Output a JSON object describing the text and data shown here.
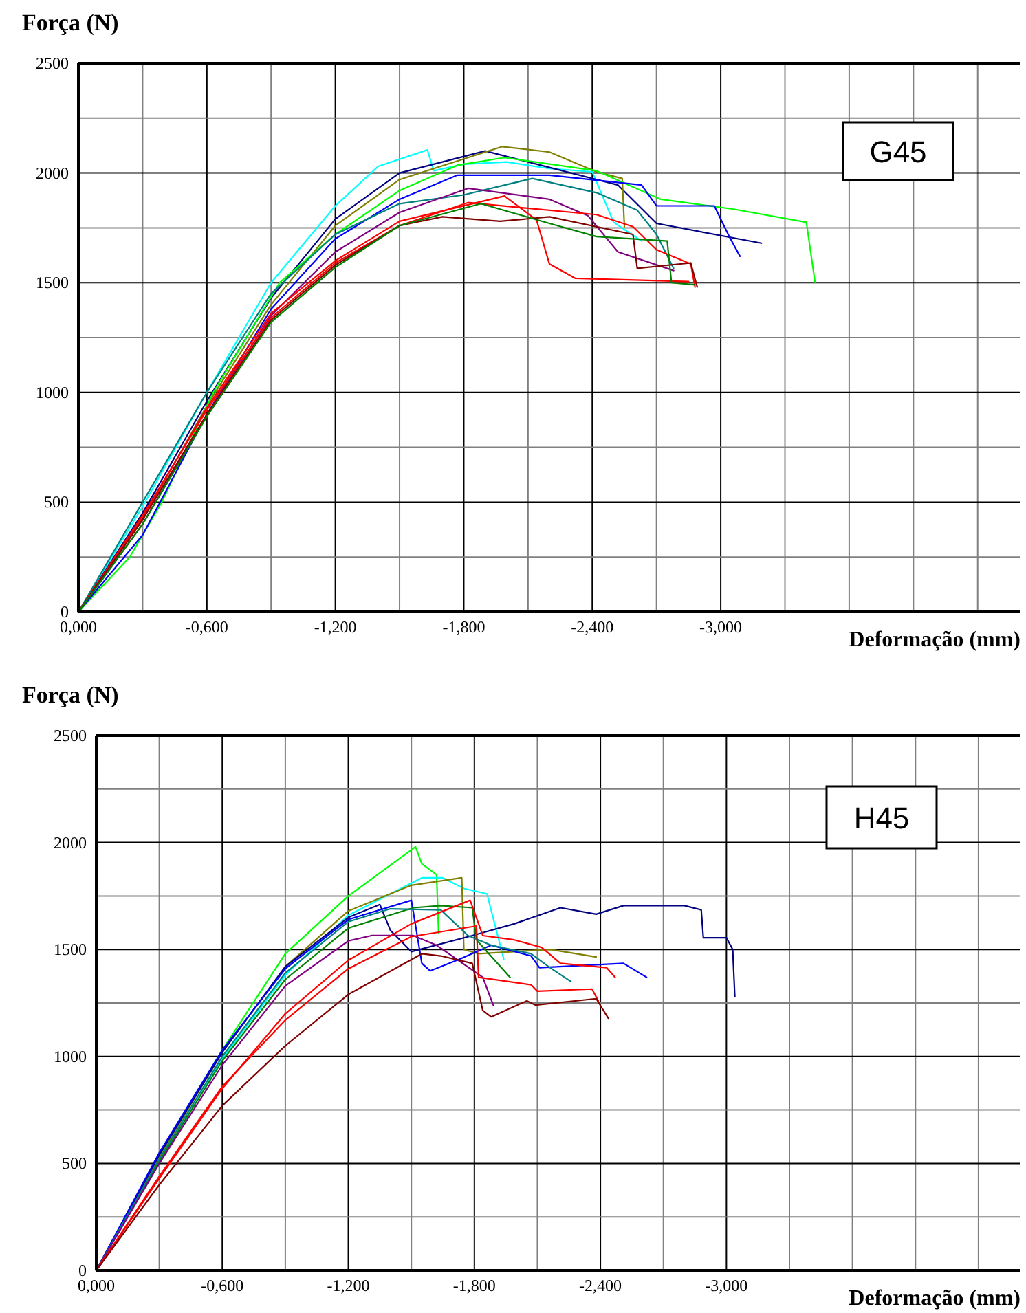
{
  "chart_data": [
    {
      "type": "line",
      "ylabel": "Força (N)",
      "xlabel": "Deformação (mm)",
      "annotations": [
        "G45"
      ],
      "grid": true,
      "xlim": [
        0,
        -4.4
      ],
      "ylim": [
        0,
        2500
      ],
      "xticks": [
        {
          "value": 0,
          "label": "0,000"
        },
        {
          "value": -0.3,
          "label": null
        },
        {
          "value": -0.6,
          "label": "-0,600"
        },
        {
          "value": -0.9,
          "label": null
        },
        {
          "value": -1.2,
          "label": "-1,200"
        },
        {
          "value": -1.5,
          "label": null
        },
        {
          "value": -1.8,
          "label": "-1,800"
        },
        {
          "value": -2.1,
          "label": null
        },
        {
          "value": -2.4,
          "label": "-2,400"
        },
        {
          "value": -2.7,
          "label": null
        },
        {
          "value": -3.0,
          "label": "-3,000"
        },
        {
          "value": -3.3,
          "label": null
        },
        {
          "value": -3.6,
          "label": null
        },
        {
          "value": -3.9,
          "label": null
        },
        {
          "value": -4.2,
          "label": null
        }
      ],
      "yticks": [
        0,
        {
          "value": 250,
          "label": null
        },
        500,
        {
          "value": 750,
          "label": null
        },
        1000,
        {
          "value": 1250,
          "label": null
        },
        1500,
        {
          "value": 1750,
          "label": null
        },
        2000,
        {
          "value": 2250,
          "label": null
        },
        2500
      ],
      "series": [
        {
          "color": "#00ffff",
          "x": [
            0,
            -0.3,
            -0.6,
            -0.9,
            -1.2,
            -1.4,
            -1.63,
            -1.66,
            -1.8,
            -2.0,
            -2.2,
            -2.4,
            -2.5,
            -2.63
          ],
          "values": [
            0,
            480,
            1000,
            1500,
            1850,
            2030,
            2105,
            2010,
            2040,
            2050,
            2020,
            2005,
            1775,
            1690
          ]
        },
        {
          "color": "#000080",
          "x": [
            0,
            -0.3,
            -0.6,
            -0.9,
            -1.2,
            -1.5,
            -1.9,
            -2.2,
            -2.52,
            -2.7,
            -3.19
          ],
          "values": [
            0,
            450,
            960,
            1430,
            1790,
            2000,
            2100,
            2025,
            1945,
            1770,
            1680
          ]
        },
        {
          "color": "#808000",
          "x": [
            0,
            -0.3,
            -0.6,
            -0.9,
            -1.2,
            -1.5,
            -1.98,
            -2.2,
            -2.42,
            -2.54,
            -2.55
          ],
          "values": [
            0,
            420,
            940,
            1400,
            1760,
            1970,
            2120,
            2095,
            2005,
            1975,
            1755
          ]
        },
        {
          "color": "#00ff00",
          "x": [
            0,
            -0.24,
            -0.39,
            -0.63,
            -0.94,
            -1.2,
            -1.5,
            -1.77,
            -1.99,
            -2.42,
            -2.72,
            -3.06,
            -3.4,
            -3.44
          ],
          "values": [
            0,
            250,
            500,
            1000,
            1500,
            1720,
            1920,
            2035,
            2070,
            2010,
            1880,
            1835,
            1775,
            1505
          ]
        },
        {
          "color": "#0000ff",
          "x": [
            0,
            -0.3,
            -0.6,
            -0.9,
            -1.2,
            -1.5,
            -1.77,
            -2.2,
            -2.63,
            -2.7,
            -2.97,
            -3.04,
            -3.09
          ],
          "values": [
            0,
            350,
            900,
            1380,
            1700,
            1880,
            1990,
            1990,
            1945,
            1850,
            1850,
            1710,
            1620
          ]
        },
        {
          "color": "#008080",
          "x": [
            0,
            -0.3,
            -0.6,
            -0.9,
            -1.2,
            -1.5,
            -1.8,
            -2.12,
            -2.42,
            -2.61,
            -2.7,
            -2.78
          ],
          "values": [
            0,
            500,
            1000,
            1450,
            1720,
            1860,
            1900,
            1975,
            1910,
            1830,
            1720,
            1565
          ]
        },
        {
          "color": "#800080",
          "x": [
            0,
            -0.3,
            -0.6,
            -0.9,
            -1.2,
            -1.5,
            -1.82,
            -2.2,
            -2.38,
            -2.52,
            -2.78
          ],
          "values": [
            0,
            400,
            900,
            1350,
            1640,
            1820,
            1930,
            1880,
            1805,
            1640,
            1555
          ]
        },
        {
          "color": "#ff0000",
          "x": [
            0,
            -0.3,
            -0.6,
            -0.9,
            -1.2,
            -1.5,
            -1.99,
            -2.14,
            -2.2,
            -2.32,
            -2.85
          ],
          "values": [
            0,
            430,
            930,
            1360,
            1600,
            1780,
            1895,
            1785,
            1585,
            1520,
            1505
          ]
        },
        {
          "color": "#ff0000",
          "x": [
            0,
            -0.3,
            -0.6,
            -0.9,
            -1.2,
            -1.5,
            -1.82,
            -2.42,
            -2.59,
            -2.7,
            -2.86,
            -2.88
          ],
          "values": [
            0,
            440,
            920,
            1340,
            1590,
            1760,
            1865,
            1810,
            1755,
            1650,
            1585,
            1480
          ]
        },
        {
          "color": "#800000",
          "x": [
            0,
            -0.3,
            -0.6,
            -0.9,
            -1.2,
            -1.5,
            -1.7,
            -1.97,
            -2.2,
            -2.59,
            -2.61,
            -2.86,
            -2.89
          ],
          "values": [
            0,
            420,
            900,
            1330,
            1580,
            1760,
            1800,
            1780,
            1800,
            1720,
            1565,
            1590,
            1480
          ]
        },
        {
          "color": "#008000",
          "x": [
            0,
            -0.3,
            -0.6,
            -0.9,
            -1.2,
            -1.5,
            -1.88,
            -2.2,
            -2.42,
            -2.75,
            -2.77,
            -2.88
          ],
          "values": [
            0,
            400,
            890,
            1320,
            1570,
            1760,
            1860,
            1770,
            1710,
            1690,
            1500,
            1490
          ]
        }
      ]
    },
    {
      "type": "line",
      "ylabel": "Força (N)",
      "xlabel": "Deformação (mm)",
      "annotations": [
        "H45"
      ],
      "grid": true,
      "xlim": [
        0,
        -4.4
      ],
      "ylim": [
        0,
        2500
      ],
      "xticks": [
        {
          "value": 0,
          "label": "0,000"
        },
        {
          "value": -0.3,
          "label": null
        },
        {
          "value": -0.6,
          "label": "-0,600"
        },
        {
          "value": -0.9,
          "label": null
        },
        {
          "value": -1.2,
          "label": "-1,200"
        },
        {
          "value": -1.5,
          "label": null
        },
        {
          "value": -1.8,
          "label": "-1,800"
        },
        {
          "value": -2.1,
          "label": null
        },
        {
          "value": -2.4,
          "label": "-2,400"
        },
        {
          "value": -2.7,
          "label": null
        },
        {
          "value": -3.0,
          "label": "-3,000"
        },
        {
          "value": -3.3,
          "label": null
        },
        {
          "value": -3.6,
          "label": null
        },
        {
          "value": -3.9,
          "label": null
        },
        {
          "value": -4.2,
          "label": null
        }
      ],
      "yticks": [
        0,
        {
          "value": 250,
          "label": null
        },
        500,
        {
          "value": 750,
          "label": null
        },
        1000,
        {
          "value": 1250,
          "label": null
        },
        1500,
        {
          "value": 1750,
          "label": null
        },
        2000,
        {
          "value": 2250,
          "label": null
        },
        2500
      ],
      "series": [
        {
          "color": "#00ff00",
          "x": [
            0,
            -0.3,
            -0.6,
            -0.9,
            -1.2,
            -1.52,
            -1.55,
            -1.62,
            -1.63
          ],
          "values": [
            0,
            540,
            1030,
            1480,
            1750,
            1980,
            1900,
            1850,
            1575
          ]
        },
        {
          "color": "#00ffff",
          "x": [
            0,
            -0.3,
            -0.6,
            -0.9,
            -1.2,
            -1.55,
            -1.65,
            -1.75,
            -1.86,
            -1.94
          ],
          "values": [
            0,
            500,
            990,
            1380,
            1660,
            1835,
            1835,
            1785,
            1760,
            1455
          ]
        },
        {
          "color": "#808000",
          "x": [
            0,
            -0.3,
            -0.6,
            -0.9,
            -1.2,
            -1.5,
            -1.74,
            -1.75,
            -1.82,
            -2.16,
            -2.38
          ],
          "values": [
            0,
            530,
            1020,
            1420,
            1680,
            1800,
            1835,
            1500,
            1480,
            1500,
            1465
          ]
        },
        {
          "color": "#000080",
          "x": [
            0,
            -0.3,
            -0.6,
            -0.9,
            -1.2,
            -1.35,
            -1.4,
            -1.5,
            -1.79,
            -1.99,
            -2.21,
            -2.38,
            -2.51,
            -2.8,
            -2.88,
            -2.89,
            -3.0,
            -3.03,
            -3.04
          ],
          "values": [
            0,
            540,
            1020,
            1420,
            1650,
            1710,
            1590,
            1490,
            1565,
            1620,
            1695,
            1665,
            1705,
            1705,
            1685,
            1555,
            1555,
            1500,
            1280
          ]
        },
        {
          "color": "#0000ff",
          "x": [
            0,
            -0.3,
            -0.6,
            -0.9,
            -1.2,
            -1.5,
            -1.55,
            -1.59,
            -1.73,
            -1.88,
            -2.07,
            -2.11,
            -2.51,
            -2.62
          ],
          "values": [
            0,
            550,
            1030,
            1410,
            1640,
            1730,
            1435,
            1400,
            1455,
            1520,
            1470,
            1415,
            1435,
            1370
          ]
        },
        {
          "color": "#008000",
          "x": [
            0,
            -0.3,
            -0.6,
            -0.9,
            -1.2,
            -1.51,
            -1.64,
            -1.79,
            -1.81,
            -1.97
          ],
          "values": [
            0,
            510,
            980,
            1360,
            1600,
            1695,
            1705,
            1695,
            1545,
            1370
          ]
        },
        {
          "color": "#008080",
          "x": [
            0,
            -0.3,
            -0.6,
            -0.9,
            -1.2,
            -1.4,
            -1.64,
            -1.77,
            -1.88,
            -2.07,
            -2.16,
            -2.26
          ],
          "values": [
            0,
            520,
            1000,
            1390,
            1630,
            1690,
            1685,
            1565,
            1520,
            1480,
            1415,
            1350
          ]
        },
        {
          "color": "#800080",
          "x": [
            0,
            -0.3,
            -0.6,
            -0.9,
            -1.2,
            -1.31,
            -1.51,
            -1.62,
            -1.84,
            -1.89
          ],
          "values": [
            0,
            500,
            960,
            1330,
            1540,
            1565,
            1565,
            1520,
            1370,
            1240
          ]
        },
        {
          "color": "#ff0000",
          "x": [
            0,
            -0.3,
            -0.6,
            -0.9,
            -1.2,
            -1.5,
            -1.78,
            -1.84,
            -1.99,
            -2.12,
            -2.21,
            -2.43,
            -2.47
          ],
          "values": [
            0,
            430,
            850,
            1200,
            1450,
            1620,
            1730,
            1565,
            1545,
            1510,
            1435,
            1415,
            1370
          ]
        },
        {
          "color": "#ff0000",
          "x": [
            0,
            -0.3,
            -0.6,
            -0.9,
            -1.2,
            -1.5,
            -1.81,
            -1.82,
            -2.07,
            -2.1,
            -2.36,
            -2.39
          ],
          "values": [
            0,
            440,
            860,
            1170,
            1410,
            1560,
            1610,
            1370,
            1335,
            1305,
            1315,
            1260
          ]
        },
        {
          "color": "#800000",
          "x": [
            0,
            -0.3,
            -0.6,
            -0.9,
            -1.2,
            -1.55,
            -1.64,
            -1.79,
            -1.84,
            -1.88,
            -2.05,
            -2.09,
            -2.38,
            -2.44
          ],
          "values": [
            0,
            400,
            770,
            1050,
            1290,
            1480,
            1470,
            1435,
            1215,
            1185,
            1260,
            1240,
            1270,
            1175
          ]
        }
      ]
    }
  ]
}
